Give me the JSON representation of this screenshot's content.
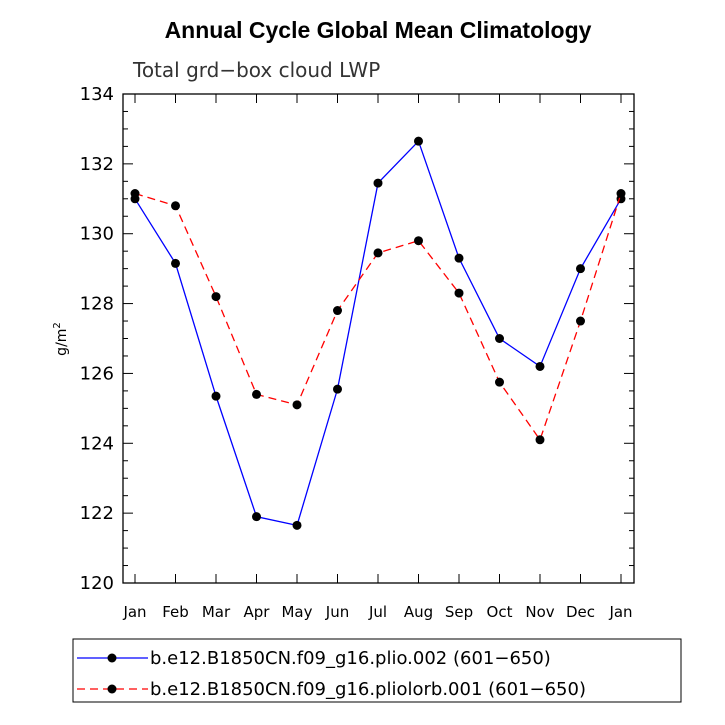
{
  "chart_data": {
    "type": "line",
    "title": "Annual Cycle Global Mean Climatology",
    "subtitle": "Total grd−box cloud LWP",
    "ylabel_base": "g/m",
    "ylabel_exp": "2",
    "xlabel": "",
    "ylim": [
      120,
      134
    ],
    "yticks": [
      "120",
      "122",
      "124",
      "126",
      "128",
      "130",
      "132",
      "134"
    ],
    "categories": [
      "Jan",
      "Feb",
      "Mar",
      "Apr",
      "May",
      "Jun",
      "Jul",
      "Aug",
      "Sep",
      "Oct",
      "Nov",
      "Dec",
      "Jan"
    ],
    "series": [
      {
        "name": "b.e12.B1850CN.f09_g16.plio.002 (601−650)",
        "color": "#0000ff",
        "dash": "solid",
        "values": [
          131.0,
          129.15,
          125.35,
          121.9,
          121.65,
          125.55,
          131.45,
          132.65,
          129.3,
          127.0,
          126.2,
          129.0,
          131.0
        ]
      },
      {
        "name": "b.e12.B1850CN.f09_g16.pliolorb.001 (601−650)",
        "color": "#ff0000",
        "dash": "dashed",
        "values": [
          131.15,
          130.8,
          128.2,
          125.4,
          125.1,
          127.8,
          129.45,
          129.8,
          128.3,
          125.75,
          124.1,
          127.5,
          131.15
        ]
      }
    ],
    "legend_position": "bottom"
  }
}
